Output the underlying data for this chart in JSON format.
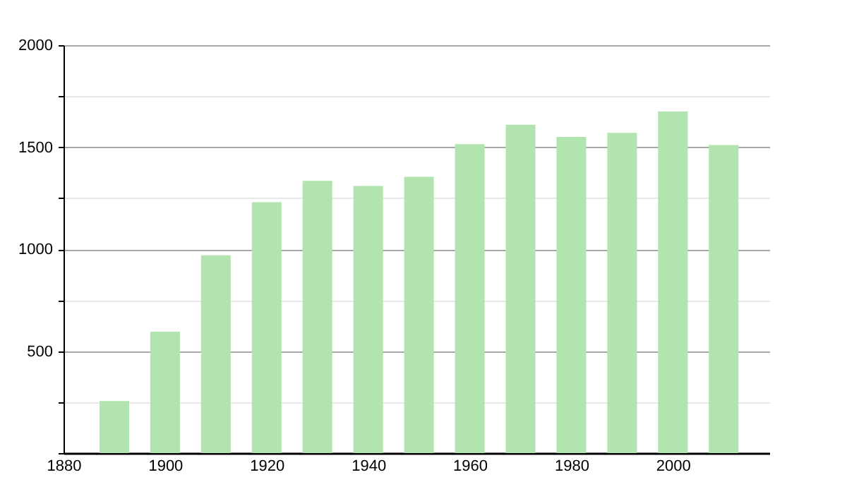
{
  "chart_data": {
    "type": "bar",
    "x": [
      1890,
      1900,
      1910,
      1920,
      1930,
      1940,
      1950,
      1960,
      1970,
      1980,
      1990,
      2000,
      2010
    ],
    "values": [
      255,
      595,
      970,
      1230,
      1335,
      1310,
      1355,
      1515,
      1610,
      1550,
      1570,
      1675,
      1510
    ],
    "color": "#b2e4b0",
    "xlim": [
      1880,
      2019
    ],
    "xticks": [
      1880,
      1900,
      1920,
      1940,
      1960,
      1980,
      2000
    ],
    "ylim": [
      0,
      2000
    ],
    "yticks": [
      {
        "value": 0,
        "label": null
      },
      {
        "value": 250,
        "label": null
      },
      500,
      {
        "value": 750,
        "label": null
      },
      1000,
      {
        "value": 1250,
        "label": null
      },
      1500,
      {
        "value": 1750,
        "label": null
      },
      2000
    ],
    "grid": "y"
  }
}
